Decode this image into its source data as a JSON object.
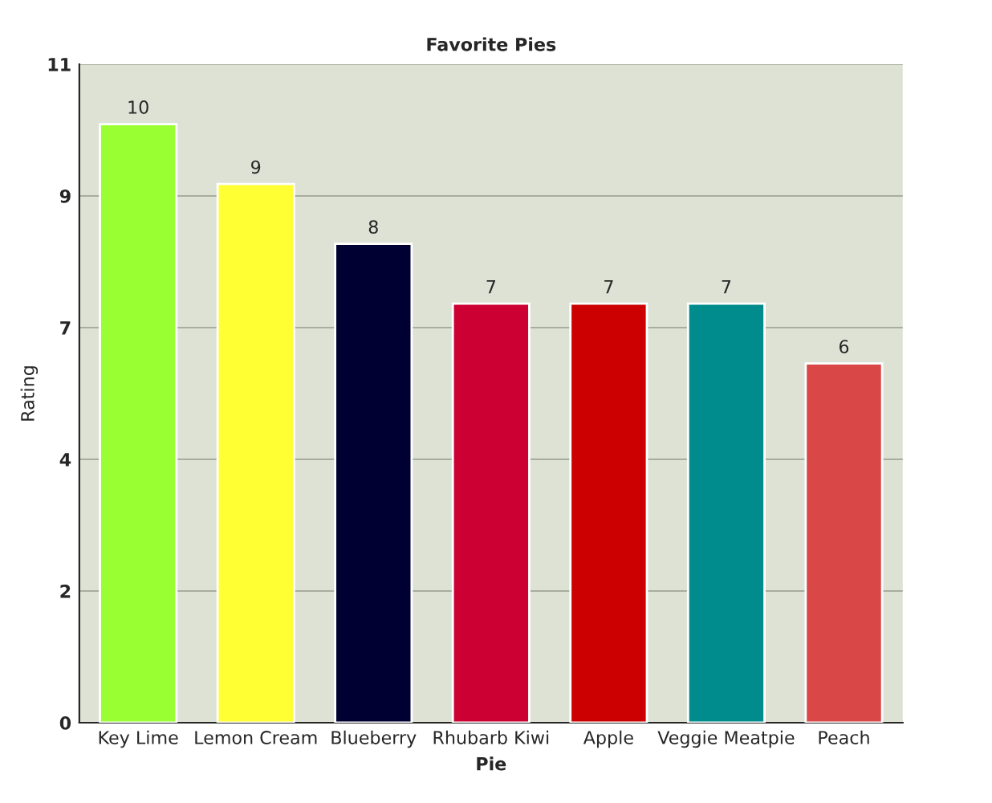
{
  "chart_data": {
    "type": "bar",
    "title": "Favorite Pies",
    "xlabel": "Pie",
    "ylabel": "Rating",
    "categories": [
      "Key Lime",
      "Lemon Cream",
      "Blueberry",
      "Rhubarb Kiwi",
      "Apple",
      "Veggie Meatpie",
      "Peach"
    ],
    "values": [
      10,
      9,
      8,
      7,
      7,
      7,
      6
    ],
    "colors": [
      "#99ff33",
      "#ffff33",
      "#000033",
      "#cc0033",
      "#cc0000",
      "#008c8c",
      "#d94747"
    ],
    "ylim": [
      0,
      11
    ],
    "yticks": [
      0,
      {
        "value": 2.2,
        "label": "2"
      },
      {
        "value": 4.4,
        "label": "4"
      },
      {
        "value": 6.6,
        "label": "7"
      },
      {
        "value": 8.8,
        "label": "9"
      },
      11
    ],
    "grid": "y",
    "data_labels": true,
    "legend": false
  }
}
